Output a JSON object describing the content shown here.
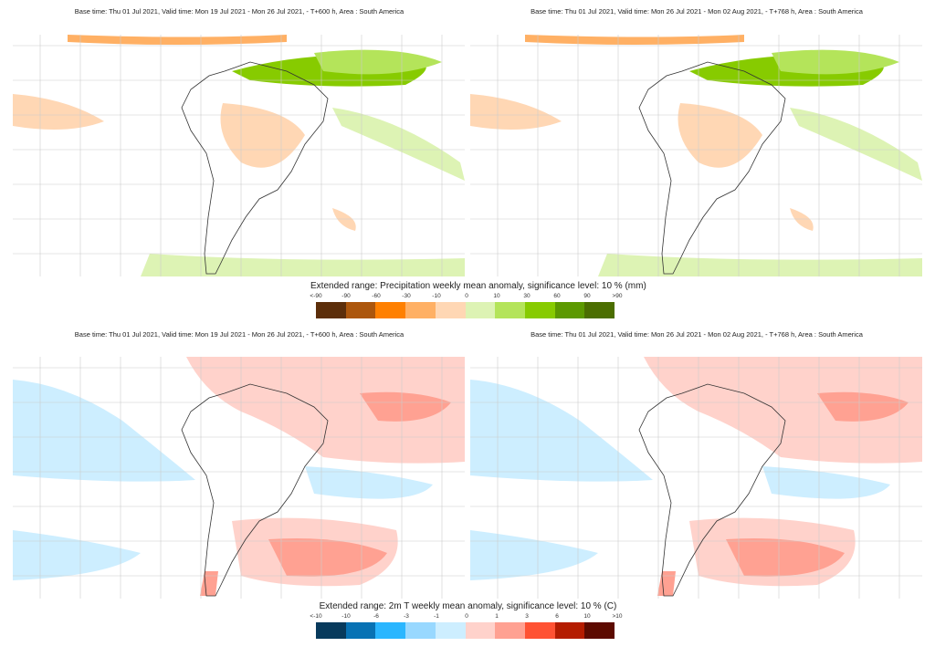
{
  "panels": [
    {
      "title": "Base time: Thu 01 Jul 2021, Valid time: Mon 19 Jul 2021 - Mon 26 Jul 2021, - T+600 h, Area : South America",
      "variable": "precipitation"
    },
    {
      "title": "Base time: Thu 01 Jul 2021, Valid time: Mon 26 Jul 2021 - Mon 02 Aug 2021, - T+768 h, Area : South America",
      "variable": "precipitation"
    },
    {
      "title": "Base time: Thu 01 Jul 2021, Valid time: Mon 19 Jul 2021 - Mon 26 Jul 2021, - T+600 h, Area : South America",
      "variable": "temperature"
    },
    {
      "title": "Base time: Thu 01 Jul 2021, Valid time: Mon 26 Jul 2021 - Mon 02 Aug 2021, - T+768 h, Area : South America",
      "variable": "temperature"
    }
  ],
  "legends": {
    "precip": {
      "title": "Extended range: Precipitation weekly mean anomaly, significance level: 10 % (mm)",
      "ticks": [
        "<-90",
        "-90",
        "-60",
        "-30",
        "-10",
        "0",
        "10",
        "30",
        "60",
        "90",
        ">90"
      ],
      "colors": [
        "#5c2e0a",
        "#ac560c",
        "#ff8000",
        "#ffb064",
        "#ffd7b4",
        "#ddf3b4",
        "#b4e45a",
        "#87cb00",
        "#5c9900",
        "#4b6e00"
      ]
    },
    "temp": {
      "title": "Extended range: 2m T weekly mean anomaly, significance level: 10 % (C)",
      "ticks": [
        "<-10",
        "-10",
        "-6",
        "-3",
        "-1",
        "0",
        "1",
        "3",
        "6",
        "10",
        ">10"
      ],
      "colors": [
        "#083a5c",
        "#0872b4",
        "#2ab6ff",
        "#98d8ff",
        "#cdeeff",
        "#ffd2cb",
        "#ffa192",
        "#ff5233",
        "#b41c00",
        "#5c0a00"
      ]
    }
  }
}
